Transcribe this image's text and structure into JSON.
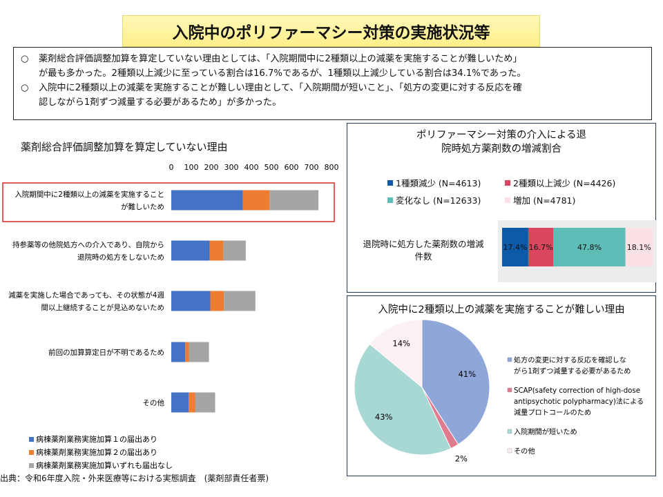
{
  "title": "入院中のポリファーマシー対策の実施状況等",
  "summary": {
    "bullet": "○",
    "line1": "薬剤総合評価調整加算を算定していない理由としては、「入院期間中に2種類以上の減薬を実施することが難しいため」",
    "line2": "が最も多かった。2種類以上減少に至っている割合は16.7%であるが、1種類以上減少している割合は34.1%であった。",
    "line3": "入院中に2種類以上の減薬を実施することが難しい理由として、「入院期間が短いこと」、「処方の変更に対する反応を確",
    "line4": "認しながら1剤ずつ減量する必要があるため」が多かった。"
  },
  "source": "出典：令和6年度入院・外来医療等における実態調査　(薬剤部責任者票)",
  "chart_data": [
    {
      "type": "bar",
      "orientation": "horizontal",
      "stacked": true,
      "title": "薬剤総合評価調整加算を算定していない理由",
      "xlim": [
        0,
        800
      ],
      "ticks": [
        "0",
        "100",
        "200",
        "300",
        "400",
        "500",
        "600",
        "700",
        "800"
      ],
      "categories": [
        [
          "入院期間中に2種類以上の減薬を実施すること",
          "が難しいため"
        ],
        [
          "持参薬等の他院処方への介入であり、自院から",
          "退院時の処方をしないため"
        ],
        [
          "減薬を実施した場合であっても、その状態が4週",
          "間以上継続することが見込めないため"
        ],
        [
          "前回の加算算定日が不明であるため"
        ],
        [
          "その他"
        ]
      ],
      "highlight_index": 0,
      "series": [
        {
          "name": "病棟薬剤業務実施加算１の届出あり",
          "color": "#4472c4",
          "values": [
            358,
            192,
            195,
            70,
            87
          ]
        },
        {
          "name": "病棟薬剤業務実施加算２の届出あり",
          "color": "#ed7d31",
          "values": [
            132,
            68,
            68,
            18,
            32
          ]
        },
        {
          "name": "病棟薬剤業務実施加算いずれも届出なし",
          "color": "#a5a5a5",
          "values": [
            245,
            112,
            157,
            100,
            100
          ]
        }
      ],
      "legend_position": "bottom-left"
    },
    {
      "type": "bar",
      "orientation": "horizontal",
      "stacked": true,
      "percent": true,
      "title": [
        "ポリファーマシー対策の介入による退",
        "院時処方薬剤数の増減割合"
      ],
      "category": [
        "退院時に処方した薬剤数の増減",
        "件数"
      ],
      "series": [
        {
          "name": "1種類減少 (N=4613)",
          "color": "#0f5aa8",
          "value": 17.4,
          "label": "17.4%"
        },
        {
          "name": "2種類以上減少 (N=4426)",
          "color": "#d9465e",
          "value": 16.7,
          "label": "16.7%"
        },
        {
          "name": "変化なし (N=12633)",
          "color": "#5fbdb7",
          "value": 47.8,
          "label": "47.8%"
        },
        {
          "name": "増加 (N=4781)",
          "color": "#fbe1e5",
          "value": 18.1,
          "label": "18.1%"
        }
      ]
    },
    {
      "type": "pie",
      "title": "入院中に2種類以上の減薬を実施することが難しい理由",
      "slices": [
        {
          "name": [
            "処方の変更に対する反応を確認しな",
            "がら1剤ずつ減量する必要があるため"
          ],
          "value": 41,
          "label": "41%",
          "color": "#8ea6d8"
        },
        {
          "name": [
            "SCAP(safety correction of high-dose",
            "antipsychotic polypharmacy)法による",
            "減量プロトコールのため"
          ],
          "value": 2,
          "label": "2%",
          "color": "#e07a8e"
        },
        {
          "name": [
            "入院期間が短いため"
          ],
          "value": 43,
          "label": "43%",
          "color": "#a8d8d4"
        },
        {
          "name": [
            "その他"
          ],
          "value": 14,
          "label": "14%",
          "color": "#fbf0f3"
        }
      ]
    }
  ]
}
